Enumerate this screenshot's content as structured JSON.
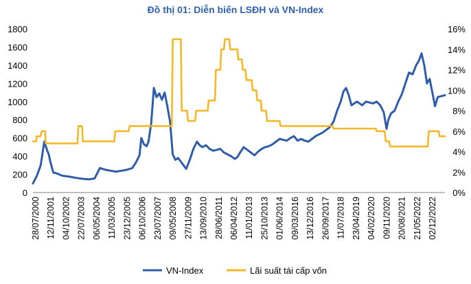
{
  "chart_data": {
    "type": "line",
    "title": "Đồ thị 01: Diễn biến LSĐH và VN-Index",
    "xlabel": "",
    "ylabel": "",
    "y_left_ticks": [
      "0",
      "200",
      "400",
      "600",
      "800",
      "1000",
      "1200",
      "1400",
      "1600",
      "1800"
    ],
    "y_left_range": [
      0,
      1800
    ],
    "y_right_ticks": [
      "0%",
      "2%",
      "4%",
      "6%",
      "8%",
      "10%",
      "12%",
      "14%",
      "16%"
    ],
    "y_right_range": [
      0,
      16
    ],
    "x_ticks": [
      "28/07/2000",
      "12/11/2001",
      "04/10/2002",
      "22/07/2003",
      "06/05/2004",
      "11/03/2005",
      "23/12/2005",
      "06/10/2006",
      "23/07/2007",
      "09/05/2008",
      "27/11/2009",
      "13/09/2010",
      "28/06/2011",
      "06/04/2012",
      "11/01/2013",
      "25/10/2013",
      "01/06/2014",
      "09/03/2016",
      "13/12/2016",
      "26/09/2017",
      "11/07/2018",
      "23/04/2019",
      "04/02/2020",
      "09/11/2020",
      "20/08/2021",
      "21/05/2022",
      "02/12/2022"
    ],
    "x_range": [
      2000.57,
      2023.5
    ],
    "grid": false,
    "legend": "bottom",
    "series": [
      {
        "name": "VN-Index",
        "axis": "left",
        "color": "#2E5CA8",
        "x": [
          2000.57,
          2000.8,
          2001.0,
          2001.2,
          2001.35,
          2001.45,
          2001.55,
          2001.7,
          2001.9,
          2002.2,
          2002.6,
          2003.0,
          2003.4,
          2003.7,
          2004.0,
          2004.3,
          2004.6,
          2004.9,
          2005.2,
          2005.5,
          2005.8,
          2006.1,
          2006.3,
          2006.5,
          2006.6,
          2006.75,
          2006.9,
          2007.0,
          2007.15,
          2007.3,
          2007.45,
          2007.6,
          2007.75,
          2007.9,
          2008.05,
          2008.2,
          2008.35,
          2008.5,
          2008.65,
          2008.8,
          2008.95,
          2009.1,
          2009.3,
          2009.5,
          2009.7,
          2009.85,
          2010.0,
          2010.2,
          2010.4,
          2010.6,
          2010.8,
          2011.0,
          2011.2,
          2011.4,
          2011.6,
          2011.8,
          2011.95,
          2012.1,
          2012.3,
          2012.5,
          2012.7,
          2012.9,
          2013.1,
          2013.3,
          2013.5,
          2013.7,
          2013.9,
          2014.1,
          2014.3,
          2014.5,
          2014.7,
          2014.9,
          2015.1,
          2015.3,
          2015.5,
          2015.7,
          2015.9,
          2016.1,
          2016.3,
          2016.5,
          2016.7,
          2016.9,
          2017.1,
          2017.3,
          2017.5,
          2017.7,
          2017.85,
          2018.0,
          2018.15,
          2018.3,
          2018.45,
          2018.6,
          2018.75,
          2018.9,
          2019.1,
          2019.3,
          2019.5,
          2019.7,
          2019.9,
          2020.1,
          2020.25,
          2020.35,
          2020.5,
          2020.7,
          2020.9,
          2021.1,
          2021.3,
          2021.5,
          2021.7,
          2021.9,
          2022.05,
          2022.2,
          2022.35,
          2022.5,
          2022.65,
          2022.8,
          2022.95,
          2023.1,
          2023.3,
          2023.5
        ],
        "values": [
          100,
          190,
          300,
          560,
          470,
          420,
          330,
          220,
          210,
          185,
          175,
          160,
          150,
          145,
          155,
          270,
          250,
          240,
          230,
          240,
          250,
          270,
          330,
          410,
          600,
          530,
          510,
          560,
          760,
          1150,
          1050,
          1090,
          1020,
          1100,
          950,
          780,
          420,
          360,
          380,
          340,
          300,
          260,
          360,
          480,
          560,
          520,
          500,
          520,
          480,
          460,
          470,
          480,
          440,
          420,
          400,
          370,
          390,
          440,
          500,
          470,
          440,
          410,
          450,
          480,
          500,
          510,
          530,
          560,
          590,
          580,
          570,
          600,
          620,
          570,
          590,
          570,
          560,
          590,
          620,
          640,
          660,
          690,
          720,
          780,
          900,
          1000,
          1110,
          1150,
          1070,
          960,
          980,
          1000,
          980,
          960,
          1000,
          990,
          980,
          1000,
          960,
          880,
          700,
          800,
          870,
          900,
          1000,
          1080,
          1200,
          1320,
          1300,
          1400,
          1450,
          1530,
          1400,
          1200,
          1250,
          1100,
          950,
          1050,
          1060,
          1070
        ]
      },
      {
        "name": "Lãi suất tái cấp vốn",
        "axis": "right",
        "color": "#F5B728",
        "x": [
          2000.57,
          2000.75,
          2000.78,
          2001.0,
          2001.05,
          2001.25,
          2001.28,
          2003.05,
          2003.1,
          2003.3,
          2003.35,
          2005.1,
          2005.15,
          2005.9,
          2005.95,
          2008.3,
          2008.35,
          2008.8,
          2008.85,
          2009.15,
          2009.2,
          2009.6,
          2009.65,
          2010.3,
          2010.35,
          2010.7,
          2010.75,
          2011.0,
          2011.05,
          2011.2,
          2011.25,
          2011.5,
          2011.55,
          2011.95,
          2012.0,
          2012.2,
          2012.25,
          2012.4,
          2012.45,
          2012.75,
          2012.8,
          2013.0,
          2013.05,
          2013.25,
          2013.3,
          2013.55,
          2013.6,
          2014.3,
          2014.35,
          2017.25,
          2017.3,
          2019.65,
          2019.7,
          2020.15,
          2020.2,
          2020.4,
          2020.45,
          2022.55,
          2022.6,
          2023.15,
          2023.2,
          2023.5
        ],
        "values": [
          5.0,
          5.0,
          5.5,
          5.5,
          6.0,
          6.0,
          4.8,
          4.8,
          6.5,
          6.5,
          5.0,
          5.0,
          6.0,
          6.0,
          6.5,
          6.5,
          15.0,
          15.0,
          8.0,
          8.0,
          7.0,
          7.0,
          8.0,
          8.0,
          9.0,
          9.0,
          12.0,
          12.0,
          14.0,
          14.0,
          15.0,
          15.0,
          14.0,
          14.0,
          13.0,
          13.0,
          12.0,
          12.0,
          11.0,
          11.0,
          10.0,
          10.0,
          9.0,
          9.0,
          8.0,
          8.0,
          7.0,
          7.0,
          6.5,
          6.5,
          6.25,
          6.25,
          6.0,
          6.0,
          5.0,
          5.0,
          4.5,
          4.5,
          6.0,
          6.0,
          5.5,
          5.5
        ]
      }
    ]
  }
}
